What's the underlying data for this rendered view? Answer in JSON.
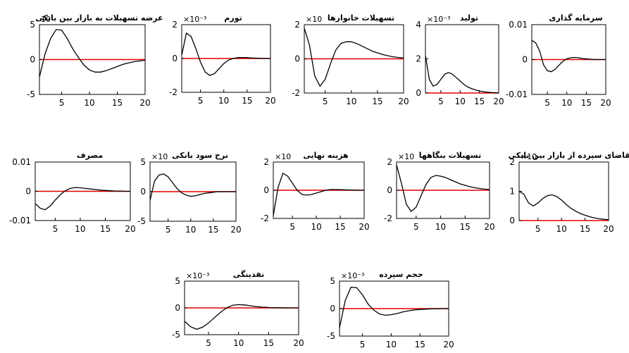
{
  "chart_data": [
    {
      "type": "line",
      "title": "عرضه تسهیلات به بازار بین بانکی",
      "multiplier": "10",
      "ylim": [
        -5,
        5
      ],
      "xlim": [
        1,
        20
      ],
      "yticks": [
        {
          "v": 5,
          "t": "5"
        },
        {
          "v": 0,
          "t": "0"
        },
        {
          "v": -5,
          "t": "-5"
        }
      ],
      "xticks": [
        5,
        10,
        15,
        20
      ],
      "x": [
        1,
        2,
        3,
        4,
        5,
        6,
        7,
        8,
        9,
        10,
        11,
        12,
        13,
        14,
        15,
        16,
        17,
        18,
        19,
        20
      ],
      "values": [
        -2.5,
        0.8,
        3.0,
        4.3,
        4.2,
        3.0,
        1.5,
        0.3,
        -0.8,
        -1.5,
        -1.8,
        -1.8,
        -1.6,
        -1.3,
        -1.0,
        -0.7,
        -0.5,
        -0.3,
        -0.2,
        -0.1
      ]
    },
    {
      "type": "line",
      "title": "تورم",
      "multiplier": "×10⁻³",
      "ylim": [
        -2,
        2
      ],
      "xlim": [
        1,
        20
      ],
      "yticks": [
        {
          "v": 2,
          "t": "2"
        },
        {
          "v": 0,
          "t": "0"
        },
        {
          "v": -2,
          "t": "-2"
        }
      ],
      "xticks": [
        5,
        10,
        15,
        20
      ],
      "x": [
        1,
        2,
        3,
        4,
        5,
        6,
        7,
        8,
        9,
        10,
        11,
        12,
        13,
        14,
        15,
        16,
        17,
        18,
        19,
        20
      ],
      "values": [
        0.2,
        1.5,
        1.3,
        0.6,
        -0.2,
        -0.8,
        -1.0,
        -0.9,
        -0.6,
        -0.3,
        -0.1,
        0.0,
        0.05,
        0.06,
        0.05,
        0.03,
        0.02,
        0.01,
        0.0,
        0.0
      ]
    },
    {
      "type": "line",
      "title": "تسهیلات خانوارها",
      "multiplier": "×10",
      "ylim": [
        -2,
        2
      ],
      "xlim": [
        1,
        20
      ],
      "yticks": [
        {
          "v": 2,
          "t": "2"
        },
        {
          "v": 0,
          "t": "0"
        },
        {
          "v": -2,
          "t": "-2"
        }
      ],
      "xticks": [
        5,
        10,
        15,
        20
      ],
      "x": [
        1,
        2,
        3,
        4,
        5,
        6,
        7,
        8,
        9,
        10,
        11,
        12,
        13,
        14,
        15,
        16,
        17,
        18,
        19,
        20
      ],
      "values": [
        1.8,
        0.8,
        -1.0,
        -1.6,
        -1.2,
        -0.3,
        0.5,
        0.9,
        1.0,
        1.0,
        0.9,
        0.75,
        0.6,
        0.45,
        0.35,
        0.25,
        0.18,
        0.12,
        0.08,
        0.05
      ]
    },
    {
      "type": "line",
      "title": "تولید",
      "multiplier": "×10⁻³",
      "ylim": [
        0,
        4
      ],
      "xlim": [
        1,
        20
      ],
      "yticks": [
        {
          "v": 4,
          "t": "4"
        },
        {
          "v": 2,
          "t": "2"
        },
        {
          "v": 0,
          "t": "0"
        }
      ],
      "xticks": [
        5,
        10,
        15,
        20
      ],
      "x": [
        1,
        2,
        3,
        4,
        5,
        6,
        7,
        8,
        9,
        10,
        11,
        12,
        13,
        14,
        15,
        16,
        17,
        18,
        19,
        20
      ],
      "values": [
        2.2,
        0.8,
        0.4,
        0.5,
        0.8,
        1.1,
        1.2,
        1.1,
        0.9,
        0.7,
        0.5,
        0.35,
        0.25,
        0.18,
        0.12,
        0.08,
        0.05,
        0.03,
        0.02,
        0.01
      ]
    },
    {
      "type": "line",
      "title": "سرمایه گذاری",
      "multiplier": "",
      "ylim": [
        -0.01,
        0.01
      ],
      "xlim": [
        1,
        20
      ],
      "yticks": [
        {
          "v": 0.01,
          "t": "0.01"
        },
        {
          "v": 0,
          "t": "0"
        },
        {
          "v": -0.01,
          "t": "-0.01"
        }
      ],
      "xticks": [
        5,
        10,
        15,
        20
      ],
      "x": [
        1,
        2,
        3,
        4,
        5,
        6,
        7,
        8,
        9,
        10,
        11,
        12,
        13,
        14,
        15,
        16,
        17,
        18,
        19,
        20
      ],
      "values": [
        0.0055,
        0.0048,
        0.0025,
        -0.0015,
        -0.0032,
        -0.0035,
        -0.0028,
        -0.0016,
        -0.0005,
        0.0002,
        0.0005,
        0.0006,
        0.0005,
        0.0003,
        0.0002,
        0.0001,
        0.0,
        0.0,
        0.0,
        0.0
      ]
    },
    {
      "type": "line",
      "title": "مصرف",
      "multiplier": "",
      "ylim": [
        -0.01,
        0.01
      ],
      "xlim": [
        1,
        20
      ],
      "yticks": [
        {
          "v": 0.01,
          "t": "0.01"
        },
        {
          "v": 0,
          "t": "0"
        },
        {
          "v": -0.01,
          "t": "-0.01"
        }
      ],
      "xticks": [
        5,
        10,
        15,
        20
      ],
      "x": [
        1,
        2,
        3,
        4,
        5,
        6,
        7,
        8,
        9,
        10,
        11,
        12,
        13,
        14,
        15,
        16,
        17,
        18,
        19,
        20
      ],
      "values": [
        -0.0042,
        -0.0058,
        -0.0063,
        -0.005,
        -0.003,
        -0.0012,
        0.0002,
        0.001,
        0.0013,
        0.0012,
        0.001,
        0.0008,
        0.0006,
        0.0004,
        0.0003,
        0.0002,
        0.0001,
        0.0001,
        0.0,
        0.0
      ]
    },
    {
      "type": "line",
      "title": "نرخ سود بانکی",
      "multiplier": "×10",
      "ylim": [
        -5,
        5
      ],
      "xlim": [
        1,
        20
      ],
      "yticks": [
        {
          "v": 5,
          "t": "5"
        },
        {
          "v": 0,
          "t": "0"
        },
        {
          "v": -5,
          "t": "-5"
        }
      ],
      "xticks": [
        5,
        10,
        15,
        20
      ],
      "x": [
        1,
        2,
        3,
        4,
        5,
        6,
        7,
        8,
        9,
        10,
        11,
        12,
        13,
        14,
        15,
        16,
        17,
        18,
        19,
        20
      ],
      "values": [
        -1.5,
        1.8,
        2.8,
        3.0,
        2.5,
        1.5,
        0.5,
        -0.2,
        -0.6,
        -0.8,
        -0.7,
        -0.5,
        -0.3,
        -0.2,
        -0.1,
        0.0,
        0.0,
        0.0,
        0.0,
        0.0
      ]
    },
    {
      "type": "line",
      "title": "هزینه نهایی",
      "multiplier": "×10",
      "ylim": [
        -2,
        2
      ],
      "xlim": [
        1,
        20
      ],
      "yticks": [
        {
          "v": 2,
          "t": "2"
        },
        {
          "v": 0,
          "t": "0"
        },
        {
          "v": -2,
          "t": "-2"
        }
      ],
      "xticks": [
        5,
        10,
        15,
        20
      ],
      "x": [
        1,
        2,
        3,
        4,
        5,
        6,
        7,
        8,
        9,
        10,
        11,
        12,
        13,
        14,
        15,
        16,
        17,
        18,
        19,
        20
      ],
      "values": [
        -1.8,
        0.2,
        1.2,
        1.0,
        0.5,
        0.0,
        -0.3,
        -0.35,
        -0.3,
        -0.2,
        -0.1,
        0.0,
        0.05,
        0.05,
        0.04,
        0.03,
        0.02,
        0.01,
        0.0,
        0.0
      ]
    },
    {
      "type": "line",
      "title": "تسهیلات بنگاهها",
      "multiplier": "×10",
      "ylim": [
        -2,
        2
      ],
      "xlim": [
        1,
        20
      ],
      "yticks": [
        {
          "v": 2,
          "t": "2"
        },
        {
          "v": 0,
          "t": "0"
        },
        {
          "v": -2,
          "t": "-2"
        }
      ],
      "xticks": [
        5,
        10,
        15,
        20
      ],
      "x": [
        1,
        2,
        3,
        4,
        5,
        6,
        7,
        8,
        9,
        10,
        11,
        12,
        13,
        14,
        15,
        16,
        17,
        18,
        19,
        20
      ],
      "values": [
        1.8,
        0.5,
        -1.0,
        -1.5,
        -1.2,
        -0.4,
        0.4,
        0.9,
        1.05,
        1.0,
        0.9,
        0.75,
        0.6,
        0.45,
        0.35,
        0.25,
        0.18,
        0.12,
        0.08,
        0.05
      ]
    },
    {
      "type": "line",
      "title": "تقاضای سپرده از بازار بین بانکی",
      "multiplier": "×10",
      "ylim": [
        0,
        2
      ],
      "xlim": [
        1,
        20
      ],
      "yticks": [
        {
          "v": 2,
          "t": "2"
        },
        {
          "v": 1,
          "t": "1"
        },
        {
          "v": 0,
          "t": "0"
        }
      ],
      "xticks": [
        5,
        10,
        15,
        20
      ],
      "x": [
        1,
        2,
        3,
        4,
        5,
        6,
        7,
        8,
        9,
        10,
        11,
        12,
        13,
        14,
        15,
        16,
        17,
        18,
        19,
        20
      ],
      "values": [
        1.0,
        0.9,
        0.6,
        0.5,
        0.6,
        0.75,
        0.85,
        0.88,
        0.82,
        0.7,
        0.55,
        0.42,
        0.32,
        0.24,
        0.18,
        0.13,
        0.09,
        0.06,
        0.04,
        0.03
      ]
    },
    {
      "type": "line",
      "title": "نقدینگی",
      "multiplier": "×10⁻³",
      "ylim": [
        -5,
        5
      ],
      "xlim": [
        1,
        20
      ],
      "yticks": [
        {
          "v": 5,
          "t": "5"
        },
        {
          "v": 0,
          "t": "0"
        },
        {
          "v": -5,
          "t": "-5"
        }
      ],
      "xticks": [
        5,
        10,
        15,
        20
      ],
      "x": [
        1,
        2,
        3,
        4,
        5,
        6,
        7,
        8,
        9,
        10,
        11,
        12,
        13,
        14,
        15,
        16,
        17,
        18,
        19,
        20
      ],
      "values": [
        -2.5,
        -3.5,
        -4.0,
        -3.6,
        -2.8,
        -1.8,
        -0.8,
        0.0,
        0.5,
        0.6,
        0.55,
        0.4,
        0.25,
        0.15,
        0.08,
        0.04,
        0.02,
        0.0,
        0.0,
        0.0
      ]
    },
    {
      "type": "line",
      "title": "حجم سپرده",
      "multiplier": "×10⁻³",
      "ylim": [
        -5,
        5
      ],
      "xlim": [
        1,
        20
      ],
      "yticks": [
        {
          "v": 5,
          "t": "5"
        },
        {
          "v": 0,
          "t": "0"
        },
        {
          "v": -5,
          "t": "-5"
        }
      ],
      "xticks": [
        5,
        10,
        15,
        20
      ],
      "x": [
        1,
        2,
        3,
        4,
        5,
        6,
        7,
        8,
        9,
        10,
        11,
        12,
        13,
        14,
        15,
        16,
        17,
        18,
        19,
        20
      ],
      "values": [
        -3.5,
        1.5,
        3.9,
        3.8,
        2.5,
        0.8,
        -0.3,
        -1.0,
        -1.2,
        -1.1,
        -0.9,
        -0.6,
        -0.4,
        -0.25,
        -0.15,
        -0.1,
        -0.05,
        -0.02,
        0.0,
        0.0
      ]
    }
  ]
}
